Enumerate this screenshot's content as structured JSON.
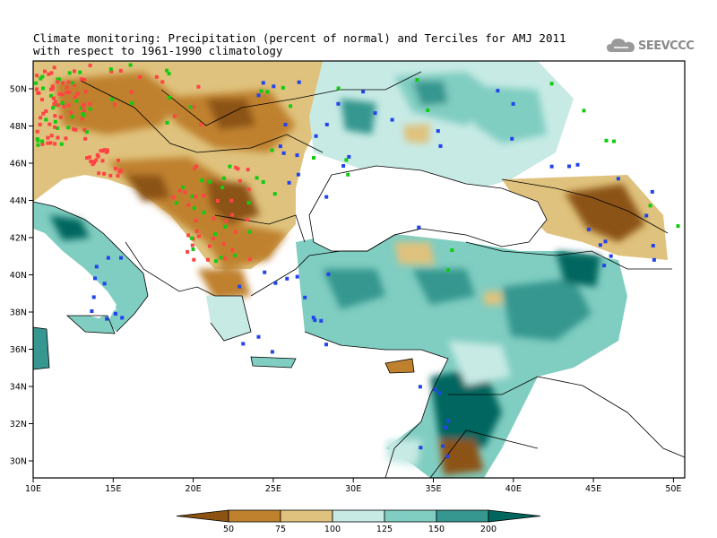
{
  "title": {
    "line1": "Climate monitoring: Precipitation (percent of normal) and Terciles for AMJ 2011",
    "line2": "with respect to 1961-1990 climatology"
  },
  "logo": {
    "text": "SEEVCCC",
    "icon": "cloud-icon"
  },
  "axes": {
    "x_ticks": [
      "10E",
      "15E",
      "20E",
      "25E",
      "30E",
      "35E",
      "40E",
      "45E",
      "50E"
    ],
    "y_ticks": [
      "50N",
      "48N",
      "46N",
      "44N",
      "42N",
      "40N",
      "38N",
      "36N",
      "34N",
      "32N",
      "30N"
    ]
  },
  "legend": {
    "ticks": [
      "50",
      "75",
      "100",
      "125",
      "150",
      "200"
    ],
    "colors": [
      "#8c5212",
      "#bf812d",
      "#dfc27d",
      "#c7eae5",
      "#80cdc1",
      "#35978f",
      "#01665e"
    ]
  },
  "colors": {
    "dry": "#bf812d",
    "wet": "#35978f",
    "tercile_below": "#ff4444",
    "tercile_above": "#11cc11",
    "tercile_normal": "#2244ee"
  }
}
